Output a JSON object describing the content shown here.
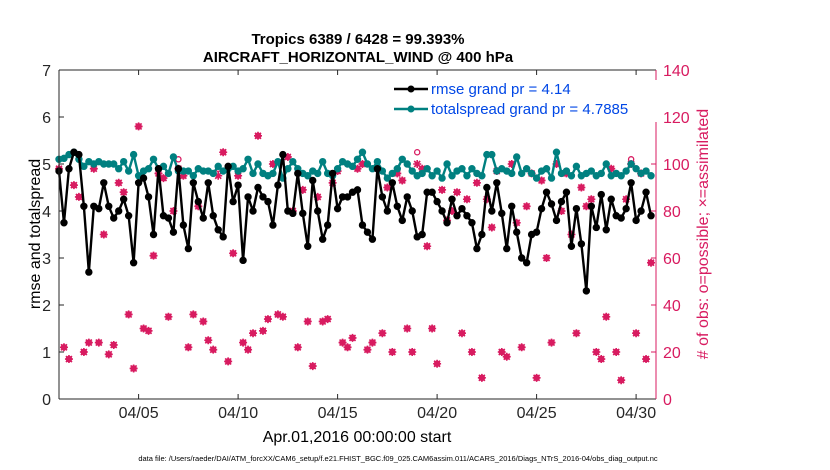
{
  "chart_data": {
    "type": "line",
    "title_line1": "Tropics 6389 / 6428 = 99.393%",
    "title_line2": "AIRCRAFT_HORIZONTAL_WIND @ 400 hPa",
    "xlabel": "Apr.01,2016 00:00:00 start",
    "ylabel_left": "rmse and totalspread",
    "ylabel_right": "# of obs: o=possible; ×=assimilated",
    "footer": "data file: /Users/raeder/DAI/ATM_forcXX/CAM6_setup/f.e21.FHIST_BGC.f09_025.CAM6assim.011/ACARS_2016/Diags_NTrS_2016-04/obs_diag_output.nc",
    "xlim": [
      1,
      31
    ],
    "ylim_left": [
      0,
      7
    ],
    "ylim_right": [
      0,
      140
    ],
    "x_ticks": [
      5,
      10,
      15,
      20,
      25,
      30
    ],
    "x_tick_labels": [
      "04/05",
      "04/10",
      "04/15",
      "04/20",
      "04/25",
      "04/30"
    ],
    "y_left_ticks": [
      "0",
      "1",
      "2",
      "3",
      "4",
      "5",
      "6",
      "7"
    ],
    "y_right_ticks": [
      "0",
      "20",
      "40",
      "60",
      "80",
      "100",
      "120",
      "140"
    ],
    "grid": false,
    "legend_position": "top-right",
    "colors": {
      "rmse": "#000000",
      "spread": "#008080",
      "obs": "#d81b60"
    },
    "series": [
      {
        "name": "rmse grand pr = 4.14",
        "key": "rmse",
        "x": [
          1.0,
          1.25,
          1.5,
          1.75,
          2.0,
          2.25,
          2.5,
          2.75,
          3.0,
          3.25,
          3.5,
          3.75,
          4.0,
          4.25,
          4.5,
          4.75,
          5.0,
          5.25,
          5.5,
          5.75,
          6.0,
          6.25,
          6.5,
          6.75,
          7.0,
          7.25,
          7.5,
          7.75,
          8.0,
          8.25,
          8.5,
          8.75,
          9.0,
          9.25,
          9.5,
          9.75,
          10.0,
          10.25,
          10.5,
          10.75,
          11.0,
          11.25,
          11.5,
          11.75,
          12.0,
          12.25,
          12.5,
          12.75,
          13.0,
          13.25,
          13.5,
          13.75,
          14.0,
          14.25,
          14.5,
          14.75,
          15.0,
          15.25,
          15.5,
          15.75,
          16.0,
          16.25,
          16.5,
          16.75,
          17.0,
          17.25,
          17.5,
          17.75,
          18.0,
          18.25,
          18.5,
          18.75,
          19.0,
          19.25,
          19.5,
          19.75,
          20.0,
          20.25,
          20.5,
          20.75,
          21.0,
          21.25,
          21.5,
          21.75,
          22.0,
          22.25,
          22.5,
          22.75,
          23.0,
          23.25,
          23.5,
          23.75,
          24.0,
          24.25,
          24.5,
          24.75,
          25.0,
          25.25,
          25.5,
          25.75,
          26.0,
          26.25,
          26.5,
          26.75,
          27.0,
          27.25,
          27.5,
          27.75,
          28.0,
          28.25,
          28.5,
          28.75,
          29.0,
          29.25,
          29.5,
          29.75,
          30.0,
          30.25,
          30.5,
          30.75
        ],
        "values": [
          4.85,
          3.75,
          4.9,
          5.25,
          5.2,
          4.1,
          2.7,
          4.1,
          4.05,
          4.6,
          4.1,
          3.85,
          4.0,
          4.25,
          3.9,
          2.9,
          4.6,
          4.7,
          4.3,
          3.5,
          4.9,
          3.9,
          3.85,
          3.55,
          4.9,
          3.7,
          3.2,
          4.6,
          4.2,
          3.85,
          4.6,
          3.9,
          3.6,
          3.45,
          4.95,
          4.2,
          4.55,
          2.95,
          4.3,
          4.0,
          4.5,
          4.3,
          4.2,
          3.7,
          4.55,
          5.2,
          4.0,
          3.95,
          4.8,
          3.95,
          3.25,
          4.65,
          4.0,
          3.4,
          3.7,
          4.8,
          4.05,
          4.3,
          4.3,
          4.4,
          4.45,
          3.7,
          3.55,
          3.4,
          4.9,
          4.3,
          4.0,
          4.6,
          4.1,
          3.8,
          4.3,
          4.0,
          3.45,
          3.5,
          4.4,
          4.4,
          4.2,
          4.0,
          3.75,
          4.25,
          3.9,
          4.05,
          3.9,
          3.75,
          3.2,
          3.5,
          4.5,
          4.0,
          4.6,
          3.95,
          3.2,
          4.1,
          3.55,
          3.0,
          2.9,
          3.5,
          3.55,
          4.05,
          4.4,
          4.15,
          3.8,
          4.2,
          4.4,
          3.25,
          4.05,
          3.3,
          2.3,
          4.1,
          3.65,
          4.35,
          3.6,
          4.25,
          3.9,
          3.85,
          4.05,
          4.6,
          3.8,
          4.0,
          4.4,
          3.9
        ]
      },
      {
        "name": "totalspread grand pr = 4.7885",
        "key": "spread",
        "x": [
          1.0,
          1.25,
          1.5,
          1.75,
          2.0,
          2.25,
          2.5,
          2.75,
          3.0,
          3.25,
          3.5,
          3.75,
          4.0,
          4.25,
          4.5,
          4.75,
          5.0,
          5.25,
          5.5,
          5.75,
          6.0,
          6.25,
          6.5,
          6.75,
          7.0,
          7.25,
          7.5,
          7.75,
          8.0,
          8.25,
          8.5,
          8.75,
          9.0,
          9.25,
          9.5,
          9.75,
          10.0,
          10.25,
          10.5,
          10.75,
          11.0,
          11.25,
          11.5,
          11.75,
          12.0,
          12.25,
          12.5,
          12.75,
          13.0,
          13.25,
          13.5,
          13.75,
          14.0,
          14.25,
          14.5,
          14.75,
          15.0,
          15.25,
          15.5,
          15.75,
          16.0,
          16.25,
          16.5,
          16.75,
          17.0,
          17.25,
          17.5,
          17.75,
          18.0,
          18.25,
          18.5,
          18.75,
          19.0,
          19.25,
          19.5,
          19.75,
          20.0,
          20.25,
          20.5,
          20.75,
          21.0,
          21.25,
          21.5,
          21.75,
          22.0,
          22.25,
          22.5,
          22.75,
          23.0,
          23.25,
          23.5,
          23.75,
          24.0,
          24.25,
          24.5,
          24.75,
          25.0,
          25.25,
          25.5,
          25.75,
          26.0,
          26.25,
          26.5,
          26.75,
          27.0,
          27.25,
          27.5,
          27.75,
          28.0,
          28.25,
          28.5,
          28.75,
          29.0,
          29.25,
          29.5,
          29.75,
          30.0,
          30.25,
          30.5,
          30.75
        ],
        "values": [
          5.1,
          5.12,
          5.2,
          5.25,
          5.1,
          4.95,
          5.05,
          5.0,
          5.05,
          5.0,
          5.0,
          5.0,
          4.9,
          5.05,
          4.85,
          5.2,
          4.75,
          4.85,
          4.9,
          5.1,
          4.9,
          4.95,
          4.8,
          5.15,
          4.85,
          4.85,
          4.85,
          4.75,
          4.9,
          4.85,
          4.85,
          4.8,
          4.95,
          4.85,
          4.9,
          4.95,
          4.85,
          4.9,
          5.1,
          4.8,
          5.0,
          4.8,
          4.75,
          4.8,
          5.05,
          4.7,
          4.9,
          5.05,
          4.9,
          4.8,
          4.75,
          4.85,
          4.8,
          5.05,
          4.8,
          4.75,
          4.9,
          5.05,
          5.0,
          4.95,
          5.1,
          5.25,
          5.0,
          4.9,
          5.05,
          4.85,
          4.7,
          4.8,
          4.9,
          5.1,
          5.0,
          4.85,
          4.75,
          4.8,
          4.9,
          4.75,
          4.85,
          4.7,
          5.0,
          4.75,
          4.85,
          4.9,
          4.75,
          4.9,
          4.8,
          4.75,
          5.2,
          5.2,
          4.85,
          4.9,
          4.85,
          4.8,
          5.15,
          4.8,
          4.9,
          4.8,
          4.7,
          4.85,
          4.9,
          4.7,
          5.25,
          4.8,
          4.85,
          4.75,
          4.95,
          4.75,
          4.8,
          4.85,
          4.75,
          4.8,
          5.0,
          4.75,
          4.8,
          4.75,
          4.85,
          5.0,
          4.9,
          4.8,
          4.85,
          4.75
        ]
      }
    ],
    "obs_possible": {
      "x": [
        1.0,
        1.25,
        1.5,
        1.75,
        2.0,
        2.25,
        2.5,
        2.75,
        3.0,
        3.25,
        3.5,
        3.75,
        4.0,
        4.25,
        4.5,
        4.75,
        5.0,
        5.25,
        5.5,
        5.75,
        6.0,
        6.25,
        6.5,
        6.75,
        7.0,
        7.25,
        7.5,
        7.75,
        8.0,
        8.25,
        8.5,
        8.75,
        9.0,
        9.25,
        9.5,
        9.75,
        10.0,
        10.25,
        10.5,
        10.75,
        11.0,
        11.25,
        11.5,
        11.75,
        12.0,
        12.25,
        12.5,
        12.75,
        13.0,
        13.25,
        13.5,
        13.75,
        14.0,
        14.25,
        14.5,
        14.75,
        15.0,
        15.25,
        15.5,
        15.75,
        16.0,
        16.25,
        16.5,
        16.75,
        17.0,
        17.25,
        17.5,
        17.75,
        18.0,
        18.25,
        18.5,
        18.75,
        19.0,
        19.25,
        19.5,
        19.75,
        20.0,
        20.25,
        20.5,
        20.75,
        21.0,
        21.25,
        21.5,
        21.75,
        22.0,
        22.25,
        22.5,
        22.75,
        23.0,
        23.25,
        23.5,
        23.75,
        24.0,
        24.25,
        24.5,
        24.75,
        25.0,
        25.25,
        25.5,
        25.75,
        26.0,
        26.25,
        26.5,
        26.75,
        27.0,
        27.25,
        27.5,
        27.75,
        28.0,
        28.25,
        28.5,
        28.75,
        29.0,
        29.25,
        29.5,
        29.75,
        30.0,
        30.25,
        30.5,
        30.75
      ],
      "values": [
        98,
        22,
        17,
        91,
        86,
        20,
        24,
        98,
        24,
        70,
        19,
        23,
        92,
        88,
        36,
        13,
        116,
        30,
        29,
        61,
        96,
        94,
        35,
        80,
        102,
        95,
        22,
        36,
        82,
        33,
        25,
        21,
        98,
        105,
        16,
        62,
        95,
        24,
        21,
        28,
        112,
        29,
        34,
        100,
        36,
        35,
        103,
        80,
        22,
        89,
        33,
        14,
        86,
        33,
        34,
        92,
        97,
        24,
        22,
        26,
        98,
        100,
        21,
        24,
        98,
        28,
        90,
        20,
        96,
        93,
        30,
        20,
        105,
        98,
        65,
        30,
        15,
        89,
        76,
        80,
        88,
        28,
        85,
        20,
        92,
        9,
        85,
        73,
        97,
        20,
        18,
        100,
        75,
        22,
        82,
        96,
        9,
        93,
        60,
        24,
        100,
        80,
        96,
        70,
        28,
        90,
        82,
        85,
        20,
        17,
        35,
        98,
        20,
        8,
        85,
        102,
        28,
        96,
        17,
        58
      ]
    },
    "obs_assimilated": {
      "x": [
        1.0,
        1.25,
        1.5,
        1.75,
        2.0,
        2.25,
        2.5,
        2.75,
        3.0,
        3.25,
        3.5,
        3.75,
        4.0,
        4.25,
        4.5,
        4.75,
        5.0,
        5.25,
        5.5,
        5.75,
        6.0,
        6.25,
        6.5,
        6.75,
        7.0,
        7.25,
        7.5,
        7.75,
        8.0,
        8.25,
        8.5,
        8.75,
        9.0,
        9.25,
        9.5,
        9.75,
        10.0,
        10.25,
        10.5,
        10.75,
        11.0,
        11.25,
        11.5,
        11.75,
        12.0,
        12.25,
        12.5,
        12.75,
        13.0,
        13.25,
        13.5,
        13.75,
        14.0,
        14.25,
        14.5,
        14.75,
        15.0,
        15.25,
        15.5,
        15.75,
        16.0,
        16.25,
        16.5,
        16.75,
        17.0,
        17.25,
        17.5,
        17.75,
        18.0,
        18.25,
        18.5,
        18.75,
        19.0,
        19.25,
        19.5,
        19.75,
        20.0,
        20.25,
        20.5,
        20.75,
        21.0,
        21.25,
        21.5,
        21.75,
        22.0,
        22.25,
        22.5,
        22.75,
        23.0,
        23.25,
        23.5,
        23.75,
        24.0,
        24.25,
        24.5,
        24.75,
        25.0,
        25.25,
        25.5,
        25.75,
        26.0,
        26.25,
        26.5,
        26.75,
        27.0,
        27.25,
        27.5,
        27.75,
        28.0,
        28.25,
        28.5,
        28.75,
        29.0,
        29.25,
        29.5,
        29.75,
        30.0,
        30.25,
        30.5,
        30.75
      ],
      "values": [
        98,
        22,
        17,
        91,
        86,
        20,
        24,
        98,
        24,
        70,
        19,
        23,
        92,
        88,
        36,
        13,
        116,
        30,
        29,
        61,
        96,
        94,
        35,
        80,
        98,
        95,
        22,
        36,
        82,
        33,
        25,
        21,
        95,
        105,
        16,
        62,
        95,
        24,
        21,
        28,
        112,
        29,
        34,
        100,
        36,
        35,
        103,
        80,
        22,
        89,
        33,
        14,
        86,
        33,
        34,
        92,
        97,
        24,
        22,
        26,
        98,
        100,
        21,
        24,
        98,
        28,
        90,
        20,
        96,
        93,
        30,
        20,
        100,
        98,
        65,
        30,
        15,
        89,
        76,
        80,
        88,
        28,
        85,
        20,
        92,
        9,
        85,
        73,
        97,
        20,
        18,
        100,
        75,
        22,
        82,
        96,
        9,
        93,
        60,
        24,
        100,
        80,
        96,
        70,
        28,
        90,
        82,
        85,
        20,
        17,
        35,
        98,
        20,
        8,
        85,
        100,
        28,
        96,
        17,
        58
      ]
    }
  }
}
